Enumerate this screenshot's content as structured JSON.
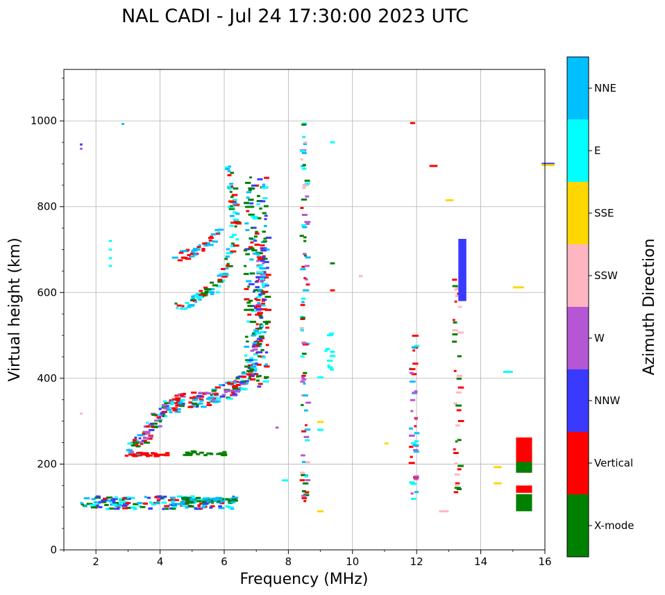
{
  "chart_data": {
    "type": "scatter",
    "title": "NAL CADI - Jul 24 17:30:00 2023 UTC",
    "xlabel": "Frequency (MHz)",
    "ylabel": "Virtual height (km)",
    "xlim": [
      1,
      16
    ],
    "ylim": [
      0,
      1120
    ],
    "xticks": [
      "2",
      "4",
      "6",
      "8",
      "10",
      "12",
      "14",
      "16"
    ],
    "yticks": [
      "0",
      "200",
      "400",
      "600",
      "800",
      "1000"
    ],
    "grid": true,
    "colorbar": {
      "label": "Azimuth Direction",
      "categories": [
        {
          "name": "X-mode",
          "color": "#008000"
        },
        {
          "name": "Vertical",
          "color": "#ff0000"
        },
        {
          "name": "NNW",
          "color": "#3a3aff"
        },
        {
          "name": "W",
          "color": "#b557d4"
        },
        {
          "name": "SSW",
          "color": "#ffb6c1"
        },
        {
          "name": "SSE",
          "color": "#ffd700"
        },
        {
          "name": "E",
          "color": "#00ffff"
        },
        {
          "name": "NNE",
          "color": "#00bfff"
        }
      ]
    },
    "traces": [
      {
        "name": "low E-layer echoes",
        "x0": 1.5,
        "x1": 6.3,
        "y0": 95,
        "y1": 125,
        "color": "Vertical",
        "n": 180,
        "mix": [
          "Vertical",
          "X-mode",
          "NNE",
          "E",
          "NNW"
        ]
      },
      {
        "name": "E-layer green tail",
        "x0": 4.6,
        "x1": 6.3,
        "y0": 110,
        "y1": 122,
        "color": "X-mode",
        "n": 60,
        "mix": [
          "X-mode",
          "NNE"
        ]
      },
      {
        "name": "2nd hop E",
        "x0": 3.0,
        "x1": 4.2,
        "y0": 218,
        "y1": 226,
        "color": "Vertical",
        "n": 30,
        "mix": [
          "Vertical"
        ]
      },
      {
        "name": "2nd hop E green",
        "x0": 4.6,
        "x1": 6.0,
        "y0": 220,
        "y1": 230,
        "color": "X-mode",
        "n": 20,
        "mix": [
          "X-mode"
        ]
      },
      {
        "name": "F-layer trace",
        "path": [
          [
            3.0,
            230
          ],
          [
            3.4,
            255
          ],
          [
            3.8,
            300
          ],
          [
            4.2,
            330
          ],
          [
            4.6,
            345
          ],
          [
            5.2,
            350
          ],
          [
            5.8,
            365
          ],
          [
            6.4,
            380
          ],
          [
            6.8,
            420
          ],
          [
            7.0,
            500
          ],
          [
            7.1,
            600
          ],
          [
            7.1,
            700
          ]
        ],
        "spread": 18,
        "n": 320,
        "mix": [
          "Vertical",
          "Vertical",
          "X-mode",
          "NNE",
          "E",
          "NNW",
          "W"
        ]
      },
      {
        "name": "2F trace",
        "path": [
          [
            4.4,
            570
          ],
          [
            4.8,
            575
          ],
          [
            5.2,
            590
          ],
          [
            5.6,
            610
          ],
          [
            6.0,
            660
          ],
          [
            6.2,
            700
          ],
          [
            6.3,
            760
          ],
          [
            6.2,
            820
          ],
          [
            6.1,
            900
          ]
        ],
        "spread": 12,
        "n": 110,
        "mix": [
          "Vertical",
          "NNE",
          "E",
          "X-mode"
        ]
      },
      {
        "name": "2F upper",
        "path": [
          [
            4.4,
            680
          ],
          [
            4.8,
            690
          ],
          [
            5.2,
            700
          ],
          [
            5.5,
            720
          ],
          [
            5.8,
            740
          ]
        ],
        "spread": 10,
        "n": 40,
        "mix": [
          "Vertical",
          "NNE"
        ]
      },
      {
        "name": "green cluster 6.7-7.2",
        "x0": 6.6,
        "x1": 7.3,
        "y0": 380,
        "y1": 870,
        "color": "X-mode",
        "n": 170,
        "mix": [
          "X-mode",
          "X-mode",
          "NNE",
          "E",
          "Vertical",
          "NNW"
        ]
      },
      {
        "name": "8.4 MHz column",
        "x0": 8.35,
        "x1": 8.55,
        "y0": 95,
        "y1": 1015,
        "color": "Vertical",
        "n": 90,
        "mix": [
          "Vertical",
          "NNE",
          "X-mode",
          "SSW",
          "E",
          "W"
        ]
      },
      {
        "name": "9.2 MHz cyan",
        "x0": 9.1,
        "x1": 9.3,
        "y0": 420,
        "y1": 505,
        "color": "E",
        "n": 10,
        "mix": [
          "E"
        ]
      },
      {
        "name": "11.8 MHz column",
        "x0": 11.75,
        "x1": 11.95,
        "y0": 100,
        "y1": 500,
        "color": "Vertical",
        "n": 40,
        "mix": [
          "Vertical",
          "NNE",
          "E",
          "W"
        ]
      },
      {
        "name": "13.2 MHz column",
        "x0": 13.1,
        "x1": 13.3,
        "y0": 90,
        "y1": 630,
        "color": "Vertical",
        "n": 40,
        "mix": [
          "Vertical",
          "X-mode",
          "SSW"
        ]
      },
      {
        "name": "13.4 NNW bar",
        "x0": 13.3,
        "x1": 13.55,
        "y0": 580,
        "y1": 725,
        "color": "NNW",
        "n": 1,
        "solid": true
      },
      {
        "name": "15.3 block",
        "x0": 15.1,
        "x1": 15.6,
        "y0": 180,
        "y1": 262,
        "color": "Vertical",
        "n": 1,
        "solid": true
      },
      {
        "name": "15.3 block green",
        "x0": 15.1,
        "x1": 15.6,
        "y0": 180,
        "y1": 205,
        "color": "X-mode",
        "n": 1,
        "solid": true
      },
      {
        "name": "15.3 lower red",
        "x0": 15.1,
        "x1": 15.6,
        "y0": 133,
        "y1": 150,
        "color": "Vertical",
        "n": 1,
        "solid": true
      },
      {
        "name": "15.3 lower green",
        "x0": 15.1,
        "x1": 15.6,
        "y0": 90,
        "y1": 130,
        "color": "X-mode",
        "n": 1,
        "solid": true
      }
    ],
    "isolated": [
      {
        "x": 15.9,
        "y": 900,
        "w": 0.4,
        "color": "NNW"
      },
      {
        "x": 15.9,
        "y": 897,
        "w": 0.4,
        "color": "SSE"
      },
      {
        "x": 15.0,
        "y": 612,
        "w": 0.35,
        "color": "SSE"
      },
      {
        "x": 14.7,
        "y": 415,
        "w": 0.3,
        "color": "E"
      },
      {
        "x": 14.4,
        "y": 193,
        "w": 0.25,
        "color": "SSE"
      },
      {
        "x": 14.4,
        "y": 155,
        "w": 0.25,
        "color": "SSE"
      },
      {
        "x": 12.7,
        "y": 90,
        "w": 0.3,
        "color": "SSW"
      },
      {
        "x": 12.9,
        "y": 815,
        "w": 0.25,
        "color": "SSE"
      },
      {
        "x": 12.4,
        "y": 895,
        "w": 0.25,
        "color": "Vertical"
      },
      {
        "x": 11.8,
        "y": 995,
        "w": 0.15,
        "color": "Vertical"
      },
      {
        "x": 11.0,
        "y": 248,
        "w": 0.12,
        "color": "SSE"
      },
      {
        "x": 10.2,
        "y": 638,
        "w": 0.12,
        "color": "SSW"
      },
      {
        "x": 9.3,
        "y": 950,
        "w": 0.15,
        "color": "E"
      },
      {
        "x": 9.3,
        "y": 668,
        "w": 0.15,
        "color": "X-mode"
      },
      {
        "x": 9.3,
        "y": 605,
        "w": 0.15,
        "color": "Vertical"
      },
      {
        "x": 8.9,
        "y": 298,
        "w": 0.2,
        "color": "SSE"
      },
      {
        "x": 8.9,
        "y": 280,
        "w": 0.2,
        "color": "E"
      },
      {
        "x": 8.9,
        "y": 90,
        "w": 0.2,
        "color": "SSE"
      },
      {
        "x": 8.9,
        "y": 402,
        "w": 0.2,
        "color": "E"
      },
      {
        "x": 2.4,
        "y": 700,
        "w": 0.1,
        "color": "E"
      },
      {
        "x": 2.4,
        "y": 720,
        "w": 0.1,
        "color": "E"
      },
      {
        "x": 2.4,
        "y": 680,
        "w": 0.1,
        "color": "E"
      },
      {
        "x": 2.4,
        "y": 662,
        "w": 0.1,
        "color": "E"
      },
      {
        "x": 2.8,
        "y": 993,
        "w": 0.08,
        "color": "NNE"
      },
      {
        "x": 1.5,
        "y": 945,
        "w": 0.08,
        "color": "NNW"
      },
      {
        "x": 1.5,
        "y": 935,
        "w": 0.08,
        "color": "W"
      },
      {
        "x": 1.5,
        "y": 318,
        "w": 0.08,
        "color": "SSW"
      },
      {
        "x": 7.8,
        "y": 162,
        "w": 0.2,
        "color": "E"
      },
      {
        "x": 7.6,
        "y": 285,
        "w": 0.1,
        "color": "W"
      }
    ]
  }
}
